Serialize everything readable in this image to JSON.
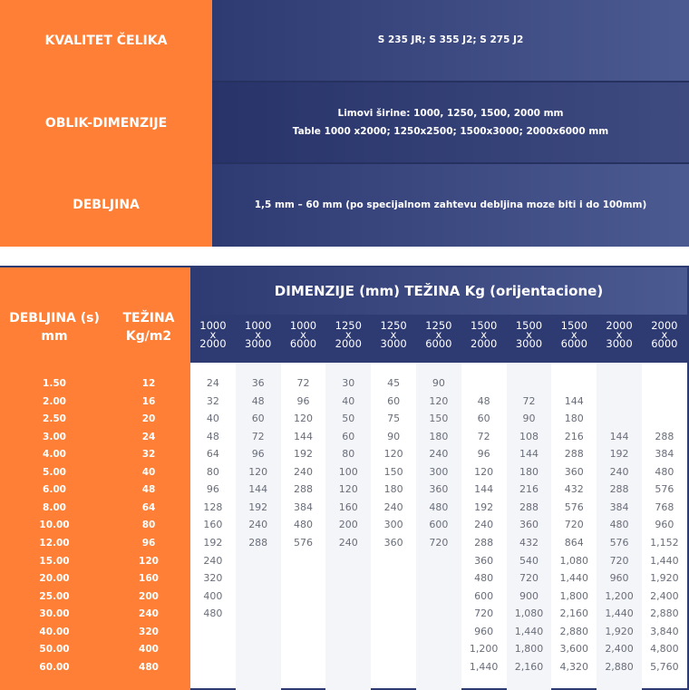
{
  "top": {
    "rows": [
      {
        "label": "KVALITET ČELIKA",
        "lines": [
          "S 235 JR; S 355 J2; S 275 J2"
        ]
      },
      {
        "label": "OBLIK-DIMENZIJE",
        "lines": [
          "Limovi širine: 1000, 1250, 1500, 2000 mm",
          "Table 1000 x2000; 1250x2500; 1500x3000; 2000x6000 mm"
        ]
      },
      {
        "label": "DEBLJINA",
        "lines": [
          "1,5 mm – 60 mm (po specijalnom zahtevu debljina moze biti i do 100mm)"
        ]
      }
    ]
  },
  "table": {
    "header_thickness": "DEBLJINA (s)\nmm",
    "header_weight": "TEŽINA\nKg/m2",
    "title": "DIMENZIJE (mm) TEŽINA Kg (orijentacione)",
    "columns": [
      "1000\nx\n2000",
      "1000\nx\n3000",
      "1000\nx\n6000",
      "1250\nx\n2000",
      "1250\nx\n3000",
      "1250\nx\n6000",
      "1500\nx\n2000",
      "1500\nx\n3000",
      "1500\nx\n6000",
      "2000\nx\n3000",
      "2000\nx\n6000"
    ],
    "rows": [
      {
        "t": "1.50",
        "w": "12",
        "v": [
          "24",
          "36",
          "72",
          "30",
          "45",
          "90",
          "",
          "",
          "",
          "",
          ""
        ]
      },
      {
        "t": "2.00",
        "w": "16",
        "v": [
          "32",
          "48",
          "96",
          "40",
          "60",
          "120",
          "48",
          "72",
          "144",
          "",
          ""
        ]
      },
      {
        "t": "2.50",
        "w": "20",
        "v": [
          "40",
          "60",
          "120",
          "50",
          "75",
          "150",
          "60",
          "90",
          "180",
          "",
          ""
        ]
      },
      {
        "t": "3.00",
        "w": "24",
        "v": [
          "48",
          "72",
          "144",
          "60",
          "90",
          "180",
          "72",
          "108",
          "216",
          "144",
          "288"
        ]
      },
      {
        "t": "4.00",
        "w": "32",
        "v": [
          "64",
          "96",
          "192",
          "80",
          "120",
          "240",
          "96",
          "144",
          "288",
          "192",
          "384"
        ]
      },
      {
        "t": "5.00",
        "w": "40",
        "v": [
          "80",
          "120",
          "240",
          "100",
          "150",
          "300",
          "120",
          "180",
          "360",
          "240",
          "480"
        ]
      },
      {
        "t": "6.00",
        "w": "48",
        "v": [
          "96",
          "144",
          "288",
          "120",
          "180",
          "360",
          "144",
          "216",
          "432",
          "288",
          "576"
        ]
      },
      {
        "t": "8.00",
        "w": "64",
        "v": [
          "128",
          "192",
          "384",
          "160",
          "240",
          "480",
          "192",
          "288",
          "576",
          "384",
          "768"
        ]
      },
      {
        "t": "10.00",
        "w": "80",
        "v": [
          "160",
          "240",
          "480",
          "200",
          "300",
          "600",
          "240",
          "360",
          "720",
          "480",
          "960"
        ]
      },
      {
        "t": "12.00",
        "w": "96",
        "v": [
          "192",
          "288",
          "576",
          "240",
          "360",
          "720",
          "288",
          "432",
          "864",
          "576",
          "1,152"
        ]
      },
      {
        "t": "15.00",
        "w": "120",
        "v": [
          "240",
          "",
          "",
          "",
          "",
          "",
          "360",
          "540",
          "1,080",
          "720",
          "1,440"
        ]
      },
      {
        "t": "20.00",
        "w": "160",
        "v": [
          "320",
          "",
          "",
          "",
          "",
          "",
          "480",
          "720",
          "1,440",
          "960",
          "1,920"
        ]
      },
      {
        "t": "25.00",
        "w": "200",
        "v": [
          "400",
          "",
          "",
          "",
          "",
          "",
          "600",
          "900",
          "1,800",
          "1,200",
          "2,400"
        ]
      },
      {
        "t": "30.00",
        "w": "240",
        "v": [
          "480",
          "",
          "",
          "",
          "",
          "",
          "720",
          "1,080",
          "2,160",
          "1,440",
          "2,880"
        ]
      },
      {
        "t": "40.00",
        "w": "320",
        "v": [
          "",
          "",
          "",
          "",
          "",
          "",
          "960",
          "1,440",
          "2,880",
          "1,920",
          "3,840"
        ]
      },
      {
        "t": "50.00",
        "w": "400",
        "v": [
          "",
          "",
          "",
          "",
          "",
          "",
          "1,200",
          "1,800",
          "3,600",
          "2,400",
          "4,800"
        ]
      },
      {
        "t": "60.00",
        "w": "480",
        "v": [
          "",
          "",
          "",
          "",
          "",
          "",
          "1,440",
          "2,160",
          "4,320",
          "2,880",
          "5,760"
        ]
      }
    ]
  },
  "colors": {
    "orange": "#fe7f35",
    "navy": "#2e3a72",
    "stripe": "#f4f5f9"
  }
}
